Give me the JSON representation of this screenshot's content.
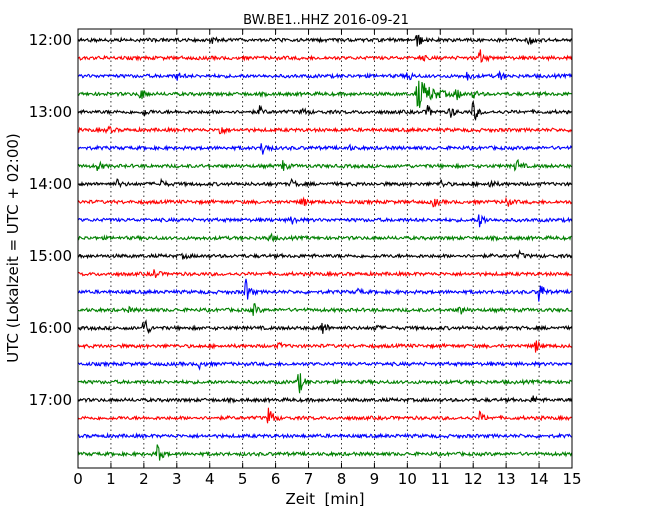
{
  "chart_data": {
    "type": "line",
    "title": "BW.BE1..HHZ 2016-09-21",
    "xlabel": "Zeit  [min]",
    "ylabel": "UTC (Lokalzeit = UTC + 02:00)",
    "xlim": [
      0,
      15
    ],
    "xticks": [
      "0",
      "1",
      "2",
      "3",
      "4",
      "5",
      "6",
      "7",
      "8",
      "9",
      "10",
      "11",
      "12",
      "13",
      "14",
      "15"
    ],
    "yticks": [
      {
        "label": "12:00",
        "row": 0
      },
      {
        "label": "13:00",
        "row": 4
      },
      {
        "label": "14:00",
        "row": 8
      },
      {
        "label": "15:00",
        "row": 12
      },
      {
        "label": "16:00",
        "row": 16
      },
      {
        "label": "17:00",
        "row": 20
      }
    ],
    "grid": "vertical dotted",
    "colors": [
      "#000000",
      "#ff0000",
      "#0000ff",
      "#008000"
    ],
    "traces": [
      {
        "start": "12:00",
        "events": [
          {
            "t": 4.0,
            "a": 0.35
          },
          {
            "t": 10.3,
            "a": 0.6
          },
          {
            "t": 13.7,
            "a": 0.4
          }
        ]
      },
      {
        "start": "12:15",
        "events": [
          {
            "t": 12.2,
            "a": 0.6
          },
          {
            "t": 10.4,
            "a": 0.25
          }
        ]
      },
      {
        "start": "12:30",
        "events": [
          {
            "t": 3.0,
            "a": 0.3
          },
          {
            "t": 10.0,
            "a": 0.5
          },
          {
            "t": 11.8,
            "a": 0.35
          },
          {
            "t": 12.8,
            "a": 0.3
          }
        ]
      },
      {
        "start": "12:45",
        "events": [
          {
            "t": 1.9,
            "a": 0.5
          },
          {
            "t": 10.3,
            "a": 1.2,
            "d": 1.3
          },
          {
            "t": 11.5,
            "a": 0.4
          },
          {
            "t": 12.0,
            "a": 0.3
          }
        ]
      },
      {
        "start": "13:00",
        "events": [
          {
            "t": 2.0,
            "a": 0.3
          },
          {
            "t": 5.5,
            "a": 0.4
          },
          {
            "t": 6.8,
            "a": 0.3
          },
          {
            "t": 10.6,
            "a": 0.5
          },
          {
            "t": 11.3,
            "a": 0.5
          },
          {
            "t": 12.0,
            "a": 0.9
          }
        ]
      },
      {
        "start": "13:15",
        "events": [
          {
            "t": 0.9,
            "a": 0.3
          },
          {
            "t": 4.3,
            "a": 0.45
          }
        ]
      },
      {
        "start": "13:30",
        "events": [
          {
            "t": 5.6,
            "a": 0.7
          },
          {
            "t": 8.2,
            "a": 0.2
          }
        ]
      },
      {
        "start": "13:45",
        "events": [
          {
            "t": 0.6,
            "a": 0.35
          },
          {
            "t": 6.2,
            "a": 0.45
          },
          {
            "t": 13.3,
            "a": 0.6
          }
        ]
      },
      {
        "start": "14:00",
        "events": [
          {
            "t": 1.2,
            "a": 0.3
          },
          {
            "t": 2.5,
            "a": 0.35
          },
          {
            "t": 6.5,
            "a": 0.3
          },
          {
            "t": 11.0,
            "a": 0.35
          },
          {
            "t": 12.5,
            "a": 0.3
          }
        ]
      },
      {
        "start": "14:15",
        "events": [
          {
            "t": 6.8,
            "a": 0.4
          },
          {
            "t": 10.8,
            "a": 0.35
          },
          {
            "t": 13.0,
            "a": 0.4
          }
        ]
      },
      {
        "start": "14:30",
        "events": [
          {
            "t": 6.5,
            "a": 0.4
          },
          {
            "t": 12.2,
            "a": 0.65
          }
        ]
      },
      {
        "start": "14:45",
        "events": [
          {
            "t": 5.8,
            "a": 0.35
          }
        ]
      },
      {
        "start": "15:00",
        "events": [
          {
            "t": 3.2,
            "a": 0.2
          },
          {
            "t": 13.4,
            "a": 0.25
          }
        ]
      },
      {
        "start": "15:15",
        "events": [
          {
            "t": 2.3,
            "a": 0.4
          }
        ]
      },
      {
        "start": "15:30",
        "events": [
          {
            "t": 5.1,
            "a": 0.95
          },
          {
            "t": 14.0,
            "a": 1.0
          },
          {
            "t": 8.5,
            "a": 0.2
          }
        ]
      },
      {
        "start": "15:45",
        "events": [
          {
            "t": 5.3,
            "a": 0.65
          },
          {
            "t": 11.6,
            "a": 0.35
          },
          {
            "t": 1.5,
            "a": 0.2
          }
        ]
      },
      {
        "start": "16:00",
        "events": [
          {
            "t": 2.0,
            "a": 1.0
          },
          {
            "t": 7.4,
            "a": 0.7
          },
          {
            "t": 9.0,
            "a": 0.25
          }
        ]
      },
      {
        "start": "16:15",
        "events": [
          {
            "t": 13.9,
            "a": 0.45
          },
          {
            "t": 6.1,
            "a": 0.2
          }
        ]
      },
      {
        "start": "16:30",
        "events": [
          {
            "t": 3.7,
            "a": 0.3
          }
        ]
      },
      {
        "start": "16:45",
        "events": [
          {
            "t": 6.7,
            "a": 1.0
          }
        ]
      },
      {
        "start": "17:00",
        "events": [
          {
            "t": 13.8,
            "a": 0.3
          }
        ]
      },
      {
        "start": "17:15",
        "events": [
          {
            "t": 5.8,
            "a": 1.0
          },
          {
            "t": 12.2,
            "a": 0.4
          }
        ]
      },
      {
        "start": "17:30",
        "events": []
      },
      {
        "start": "17:45",
        "events": [
          {
            "t": 2.4,
            "a": 0.85
          }
        ]
      }
    ]
  }
}
